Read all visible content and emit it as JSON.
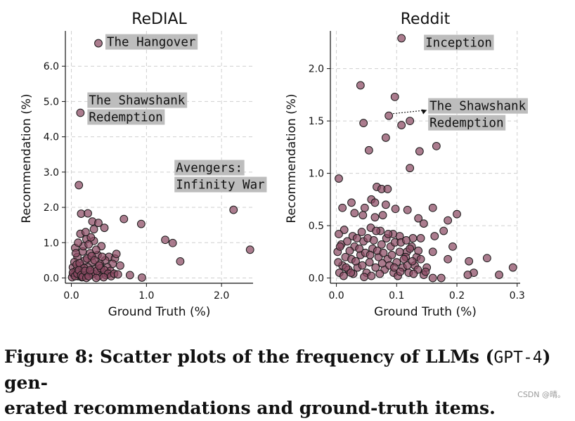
{
  "chart_data": [
    {
      "type": "scatter",
      "title": "ReDIAL",
      "xlabel": "Ground Truth (%)",
      "ylabel": "Recommendation (%)",
      "xlim": [
        -0.08,
        2.42
      ],
      "ylim": [
        -0.15,
        7.0
      ],
      "xticks": [
        0.0,
        1.0,
        2.0
      ],
      "xtick_labels": [
        "0.0",
        "1.0",
        "2.0"
      ],
      "yticks": [
        0.0,
        1.0,
        2.0,
        3.0,
        4.0,
        5.0,
        6.0
      ],
      "ytick_labels": [
        "0.0",
        "1.0",
        "2.0",
        "3.0",
        "4.0",
        "5.0",
        "6.0"
      ],
      "grid": true,
      "marker_color": "#8a4a63",
      "annotations": [
        {
          "lines": [
            "The Hangover"
          ],
          "x": 0.36,
          "y": 6.65
        },
        {
          "lines": [
            "The Shawshank",
            "Redemption"
          ],
          "x": 0.12,
          "y": 4.68
        },
        {
          "lines": [
            "Avengers:",
            "Infinity War"
          ],
          "x": 2.16,
          "y": 1.93
        }
      ],
      "points": [
        [
          0.36,
          6.65
        ],
        [
          0.12,
          4.68
        ],
        [
          0.1,
          2.63
        ],
        [
          2.16,
          1.93
        ],
        [
          0.13,
          1.82
        ],
        [
          0.22,
          1.83
        ],
        [
          0.7,
          1.67
        ],
        [
          0.93,
          1.53
        ],
        [
          0.28,
          1.6
        ],
        [
          0.36,
          1.56
        ],
        [
          0.44,
          1.42
        ],
        [
          0.3,
          1.38
        ],
        [
          1.25,
          1.08
        ],
        [
          1.35,
          0.99
        ],
        [
          2.38,
          0.8
        ],
        [
          1.45,
          0.47
        ],
        [
          0.78,
          0.08
        ],
        [
          0.94,
          0.01
        ],
        [
          0.12,
          1.25
        ],
        [
          0.2,
          1.1
        ],
        [
          0.3,
          1.05
        ],
        [
          0.4,
          0.9
        ],
        [
          0.05,
          0.85
        ],
        [
          0.15,
          0.75
        ],
        [
          0.25,
          0.7
        ],
        [
          0.35,
          0.65
        ],
        [
          0.5,
          0.6
        ],
        [
          0.58,
          0.55
        ],
        [
          0.6,
          0.68
        ],
        [
          0.45,
          0.5
        ],
        [
          0.55,
          0.4
        ],
        [
          0.65,
          0.35
        ],
        [
          0.08,
          0.6
        ],
        [
          0.18,
          0.5
        ],
        [
          0.28,
          0.45
        ],
        [
          0.38,
          0.4
        ],
        [
          0.48,
          0.3
        ],
        [
          0.52,
          0.2
        ],
        [
          0.42,
          0.15
        ],
        [
          0.32,
          0.25
        ],
        [
          0.22,
          0.3
        ],
        [
          0.12,
          0.35
        ],
        [
          0.02,
          0.3
        ],
        [
          0.06,
          0.2
        ],
        [
          0.16,
          0.15
        ],
        [
          0.26,
          0.1
        ],
        [
          0.36,
          0.05
        ],
        [
          0.46,
          0.08
        ],
        [
          0.03,
          0.1
        ],
        [
          0.09,
          0.05
        ],
        [
          0.14,
          0.02
        ],
        [
          0.19,
          0.08
        ],
        [
          0.24,
          0.18
        ],
        [
          0.29,
          0.12
        ],
        [
          0.34,
          0.2
        ],
        [
          0.39,
          0.28
        ],
        [
          0.44,
          0.22
        ],
        [
          0.49,
          0.12
        ],
        [
          0.01,
          0.02
        ],
        [
          0.04,
          0.45
        ],
        [
          0.07,
          0.38
        ],
        [
          0.11,
          0.42
        ],
        [
          0.17,
          0.28
        ],
        [
          0.21,
          0.55
        ],
        [
          0.27,
          0.62
        ],
        [
          0.31,
          0.5
        ],
        [
          0.37,
          0.35
        ],
        [
          0.41,
          0.6
        ],
        [
          0.53,
          0.05
        ],
        [
          0.57,
          0.12
        ],
        [
          0.62,
          0.1
        ],
        [
          0.02,
          0.15
        ],
        [
          0.05,
          0.05
        ],
        [
          0.08,
          0.12
        ],
        [
          0.1,
          0.22
        ],
        [
          0.13,
          0.08
        ],
        [
          0.15,
          0.03
        ],
        [
          0.18,
          0.2
        ],
        [
          0.2,
          0.0
        ],
        [
          0.23,
          0.05
        ],
        [
          0.25,
          0.22
        ],
        [
          0.33,
          0.0
        ],
        [
          0.43,
          0.02
        ],
        [
          0.06,
          0.7
        ],
        [
          0.16,
          0.9
        ],
        [
          0.23,
          0.95
        ],
        [
          0.33,
          0.8
        ],
        [
          0.09,
          1.0
        ],
        [
          0.26,
          1.15
        ],
        [
          0.19,
          1.3
        ]
      ]
    },
    {
      "type": "scatter",
      "title": "Reddit",
      "xlabel": "Ground Truth (%)",
      "ylabel": "Recommendation (%)",
      "xlim": [
        -0.01,
        0.305
      ],
      "ylim": [
        -0.05,
        2.36
      ],
      "xticks": [
        0.0,
        0.1,
        0.2,
        0.3
      ],
      "xtick_labels": [
        "0.0",
        "0.1",
        "0.2",
        "0.3"
      ],
      "yticks": [
        0.0,
        0.5,
        1.0,
        1.5,
        2.0
      ],
      "ytick_labels": [
        "0.0",
        "0.5",
        "1.0",
        "1.5",
        "2.0"
      ],
      "grid": true,
      "marker_color": "#8a4a63",
      "annotations": [
        {
          "lines": [
            "Inception"
          ],
          "x": 0.108,
          "y": 2.29
        },
        {
          "lines": [
            "The Shawshank",
            "Redemption"
          ],
          "x": 0.087,
          "y": 1.55,
          "arrow": true
        }
      ],
      "points": [
        [
          0.108,
          2.29
        ],
        [
          0.04,
          1.84
        ],
        [
          0.097,
          1.73
        ],
        [
          0.087,
          1.55
        ],
        [
          0.045,
          1.48
        ],
        [
          0.108,
          1.46
        ],
        [
          0.122,
          1.5
        ],
        [
          0.082,
          1.34
        ],
        [
          0.054,
          1.22
        ],
        [
          0.138,
          1.21
        ],
        [
          0.166,
          1.26
        ],
        [
          0.122,
          1.05
        ],
        [
          0.004,
          0.95
        ],
        [
          0.067,
          0.87
        ],
        [
          0.075,
          0.85
        ],
        [
          0.085,
          0.85
        ],
        [
          0.058,
          0.75
        ],
        [
          0.064,
          0.72
        ],
        [
          0.082,
          0.7
        ],
        [
          0.025,
          0.72
        ],
        [
          0.047,
          0.67
        ],
        [
          0.01,
          0.67
        ],
        [
          0.03,
          0.62
        ],
        [
          0.044,
          0.6
        ],
        [
          0.064,
          0.58
        ],
        [
          0.077,
          0.6
        ],
        [
          0.098,
          0.66
        ],
        [
          0.118,
          0.65
        ],
        [
          0.136,
          0.57
        ],
        [
          0.16,
          0.67
        ],
        [
          0.2,
          0.61
        ],
        [
          0.185,
          0.55
        ],
        [
          0.178,
          0.45
        ],
        [
          0.163,
          0.4
        ],
        [
          0.145,
          0.52
        ],
        [
          0.14,
          0.38
        ],
        [
          0.127,
          0.38
        ],
        [
          0.105,
          0.4
        ],
        [
          0.094,
          0.42
        ],
        [
          0.073,
          0.45
        ],
        [
          0.057,
          0.48
        ],
        [
          0.042,
          0.44
        ],
        [
          0.027,
          0.4
        ],
        [
          0.013,
          0.46
        ],
        [
          0.004,
          0.42
        ],
        [
          0.193,
          0.3
        ],
        [
          0.185,
          0.18
        ],
        [
          0.22,
          0.16
        ],
        [
          0.25,
          0.19
        ],
        [
          0.293,
          0.1
        ],
        [
          0.228,
          0.05
        ],
        [
          0.218,
          0.03
        ],
        [
          0.27,
          0.03
        ],
        [
          0.16,
          0.0
        ],
        [
          0.174,
          0.0
        ],
        [
          0.145,
          0.03
        ],
        [
          0.15,
          0.1
        ],
        [
          0.16,
          0.25
        ],
        [
          0.133,
          0.2
        ],
        [
          0.117,
          0.25
        ],
        [
          0.005,
          0.05
        ],
        [
          0.01,
          0.12
        ],
        [
          0.015,
          0.2
        ],
        [
          0.02,
          0.08
        ],
        [
          0.025,
          0.18
        ],
        [
          0.03,
          0.3
        ],
        [
          0.035,
          0.1
        ],
        [
          0.04,
          0.22
        ],
        [
          0.045,
          0.35
        ],
        [
          0.05,
          0.05
        ],
        [
          0.055,
          0.15
        ],
        [
          0.06,
          0.28
        ],
        [
          0.065,
          0.1
        ],
        [
          0.07,
          0.2
        ],
        [
          0.075,
          0.32
        ],
        [
          0.08,
          0.08
        ],
        [
          0.085,
          0.18
        ],
        [
          0.09,
          0.3
        ],
        [
          0.095,
          0.05
        ],
        [
          0.1,
          0.15
        ],
        [
          0.105,
          0.25
        ],
        [
          0.11,
          0.1
        ],
        [
          0.115,
          0.2
        ],
        [
          0.12,
          0.05
        ],
        [
          0.125,
          0.3
        ],
        [
          0.13,
          0.12
        ],
        [
          0.135,
          0.08
        ],
        [
          0.14,
          0.18
        ],
        [
          0.002,
          0.25
        ],
        [
          0.008,
          0.32
        ],
        [
          0.012,
          0.02
        ],
        [
          0.018,
          0.35
        ],
        [
          0.022,
          0.26
        ],
        [
          0.028,
          0.04
        ],
        [
          0.032,
          0.16
        ],
        [
          0.038,
          0.28
        ],
        [
          0.043,
          0.12
        ],
        [
          0.048,
          0.24
        ],
        [
          0.052,
          0.38
        ],
        [
          0.058,
          0.02
        ],
        [
          0.062,
          0.36
        ],
        [
          0.068,
          0.26
        ],
        [
          0.072,
          0.04
        ],
        [
          0.078,
          0.24
        ],
        [
          0.083,
          0.38
        ],
        [
          0.088,
          0.12
        ],
        [
          0.092,
          0.22
        ],
        [
          0.097,
          0.34
        ],
        [
          0.102,
          0.02
        ],
        [
          0.107,
          0.34
        ],
        [
          0.112,
          0.18
        ],
        [
          0.118,
          0.12
        ],
        [
          0.122,
          0.28
        ],
        [
          0.128,
          0.04
        ],
        [
          0.003,
          0.15
        ],
        [
          0.006,
          0.3
        ],
        [
          0.016,
          0.1
        ],
        [
          0.024,
          0.05
        ],
        [
          0.034,
          0.38
        ],
        [
          0.046,
          0.01
        ],
        [
          0.056,
          0.22
        ],
        [
          0.066,
          0.45
        ],
        [
          0.076,
          0.14
        ],
        [
          0.086,
          0.42
        ],
        [
          0.096,
          0.1
        ],
        [
          0.106,
          0.06
        ],
        [
          0.116,
          0.36
        ],
        [
          0.126,
          0.16
        ],
        [
          0.136,
          0.26
        ],
        [
          0.148,
          0.06
        ]
      ]
    }
  ],
  "caption": {
    "prefix": "Figure 8: Scatter plots of the frequency of LLMs (",
    "model": "GPT-4",
    "suffix_line1": ") gen-",
    "line2": "erated recommendations and ground-truth items."
  },
  "watermark": "CSDN @晴。"
}
